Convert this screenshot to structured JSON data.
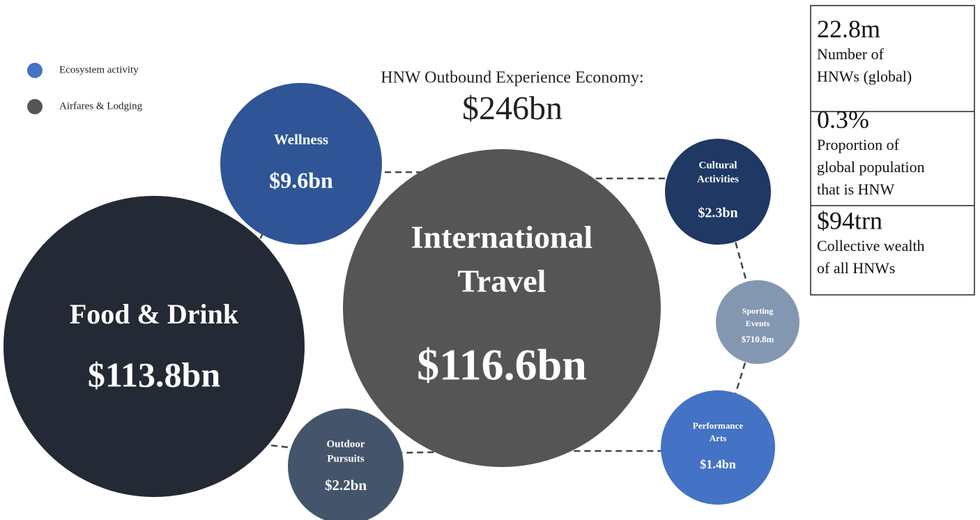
{
  "title": "HNW Outbound Experience Economy:",
  "total": "$246bn",
  "legend": [
    "Ecosystem activity",
    "Airfares & Lodging"
  ],
  "bubbles": [
    {
      "label": [
        "International",
        "Travel"
      ],
      "value": "$116.6bn"
    },
    {
      "label": [
        "Food & Drink"
      ],
      "value": "$113.8bn"
    },
    {
      "label": [
        "Wellness"
      ],
      "value": "$9.6bn"
    },
    {
      "label": [
        "Cultural",
        "Activities"
      ],
      "value": "$2.3bn"
    },
    {
      "label": [
        "Sporting",
        "Events"
      ],
      "value": "$710.8m"
    },
    {
      "label": [
        "Performance",
        "Arts"
      ],
      "value": "$1.4bn"
    },
    {
      "label": [
        "Outdoor",
        "Pursuits"
      ],
      "value": "$2.2bn"
    }
  ],
  "stats": [
    {
      "value": "22.8m",
      "lines": [
        "Number of",
        "HNWs (global)"
      ]
    },
    {
      "value": "0.3%",
      "lines": [
        "Proportion of",
        "global population",
        "that is HNW"
      ]
    },
    {
      "value": "$94trn",
      "lines": [
        "Collective wealth",
        "of all HNWs"
      ]
    }
  ]
}
